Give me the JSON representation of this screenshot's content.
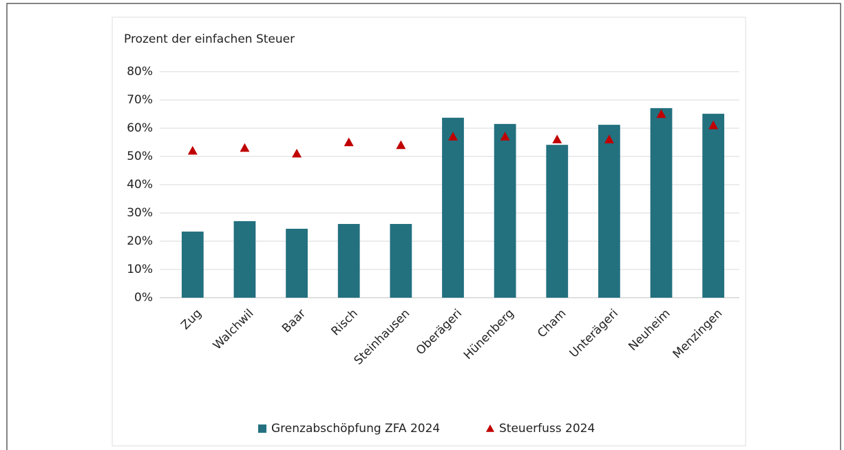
{
  "chart_data": {
    "type": "bar",
    "y_label": "Prozent der einfachen Steuer",
    "categories": [
      "Zug",
      "Walchwil",
      "Baar",
      "Risch",
      "Steinhausen",
      "Oberägeri",
      "Hünenberg",
      "Cham",
      "Unterägeri",
      "Neuheim",
      "Menzingen"
    ],
    "series": [
      {
        "name": "Grenzabschöpfung ZFA 2024",
        "type": "bar",
        "color": "#23707f",
        "values": [
          23.4,
          27.1,
          24.4,
          26.1,
          26.1,
          63.7,
          61.5,
          54.1,
          61.2,
          67.1,
          65.1
        ]
      },
      {
        "name": "Steuerfuss 2024",
        "type": "triangle",
        "color": "#c00000",
        "values": [
          52,
          53,
          51,
          55,
          54,
          57,
          57,
          56,
          56,
          65,
          61
        ]
      }
    ],
    "ylim": [
      0,
      80
    ],
    "yticks": [
      {
        "value": 0,
        "label": "0%"
      },
      {
        "value": 10,
        "label": "10%"
      },
      {
        "value": 20,
        "label": "20%"
      },
      {
        "value": 30,
        "label": "30%"
      },
      {
        "value": 40,
        "label": "40%"
      },
      {
        "value": 50,
        "label": "50%"
      },
      {
        "value": 60,
        "label": "60%"
      },
      {
        "value": 70,
        "label": "70%"
      },
      {
        "value": 80,
        "label": "80%"
      }
    ],
    "grid": true,
    "legend": "bottom"
  }
}
